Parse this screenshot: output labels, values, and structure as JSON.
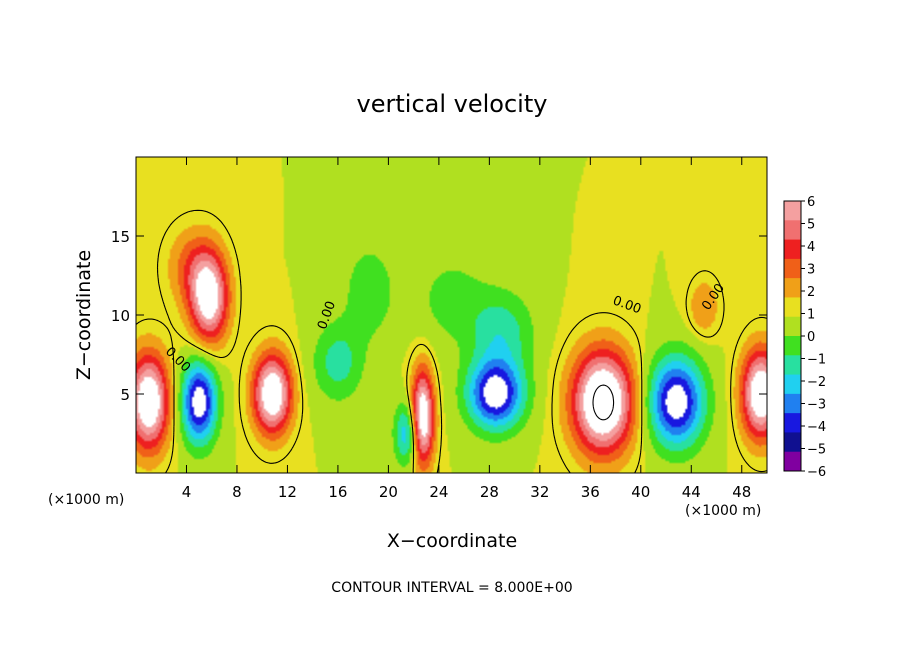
{
  "chart_data": {
    "type": "heatmap",
    "title": "vertical velocity",
    "xlabel": "X−coordinate",
    "ylabel": "Z−coordinate",
    "x_unit_left": "(×1000 m)",
    "x_unit_right": "(×1000 m)",
    "xlim": [
      0,
      50
    ],
    "ylim": [
      0,
      20
    ],
    "x_ticks": [
      4,
      8,
      12,
      16,
      20,
      24,
      28,
      32,
      36,
      40,
      44,
      48
    ],
    "y_ticks": [
      5,
      10,
      15
    ],
    "footer": "CONTOUR INTERVAL = 8.000E+00",
    "colorbar": {
      "ticks": [
        6,
        5,
        4,
        3,
        2,
        1,
        0,
        -1,
        -2,
        -3,
        -4,
        -5,
        -6
      ],
      "labels": [
        "6",
        "5",
        "4",
        "3",
        "2",
        "1",
        "0",
        "−1",
        "−2",
        "−3",
        "−4",
        "−5",
        "−6"
      ],
      "colors": [
        "#f4a0a0",
        "#f07070",
        "#ee2020",
        "#f06018",
        "#f0a018",
        "#e8e020",
        "#b0e020",
        "#40e020",
        "#28e0a0",
        "#20d0f0",
        "#2080f0",
        "#1818e0",
        "#101090",
        "#8000a0"
      ]
    },
    "contour_labels": [
      "0.00",
      "0.00",
      "0.00",
      "0.00"
    ],
    "cells": [
      {
        "x": 1.0,
        "z": 4.5,
        "sx": 1.6,
        "sz": 3.0,
        "v": 8
      },
      {
        "x": 5.0,
        "z": 4.5,
        "sx": 1.4,
        "sz": 2.6,
        "v": -7
      },
      {
        "x": 5.8,
        "z": 11.0,
        "sx": 1.5,
        "sz": 2.8,
        "v": 7
      },
      {
        "x": 4.5,
        "z": 13.0,
        "sx": 2.0,
        "sz": 2.5,
        "v": 2.5
      },
      {
        "x": 10.8,
        "z": 5.0,
        "sx": 1.5,
        "sz": 2.5,
        "v": 8
      },
      {
        "x": 16.0,
        "z": 7.0,
        "sx": 2.0,
        "sz": 2.5,
        "v": -2.5
      },
      {
        "x": 18.5,
        "z": 11.5,
        "sx": 2.0,
        "sz": 3.0,
        "v": -1.8
      },
      {
        "x": 21.5,
        "z": 2.5,
        "sx": 1.0,
        "sz": 2.0,
        "v": -4
      },
      {
        "x": 22.7,
        "z": 3.5,
        "sx": 0.9,
        "sz": 3.0,
        "v": 8
      },
      {
        "x": 28.5,
        "z": 5.0,
        "sx": 2.2,
        "sz": 2.2,
        "v": -7
      },
      {
        "x": 29.0,
        "z": 9.0,
        "sx": 2.5,
        "sz": 2.5,
        "v": -2.5
      },
      {
        "x": 37.0,
        "z": 4.5,
        "sx": 2.4,
        "sz": 3.2,
        "v": 9
      },
      {
        "x": 42.8,
        "z": 4.5,
        "sx": 2.2,
        "sz": 2.8,
        "v": -7
      },
      {
        "x": 45.0,
        "z": 10.5,
        "sx": 1.2,
        "sz": 1.8,
        "v": 2
      },
      {
        "x": 49.5,
        "z": 5.0,
        "sx": 1.5,
        "sz": 2.8,
        "v": 8
      },
      {
        "x": 25.0,
        "z": 11.0,
        "sx": 3.0,
        "sz": 3.0,
        "v": -1.4
      }
    ]
  }
}
